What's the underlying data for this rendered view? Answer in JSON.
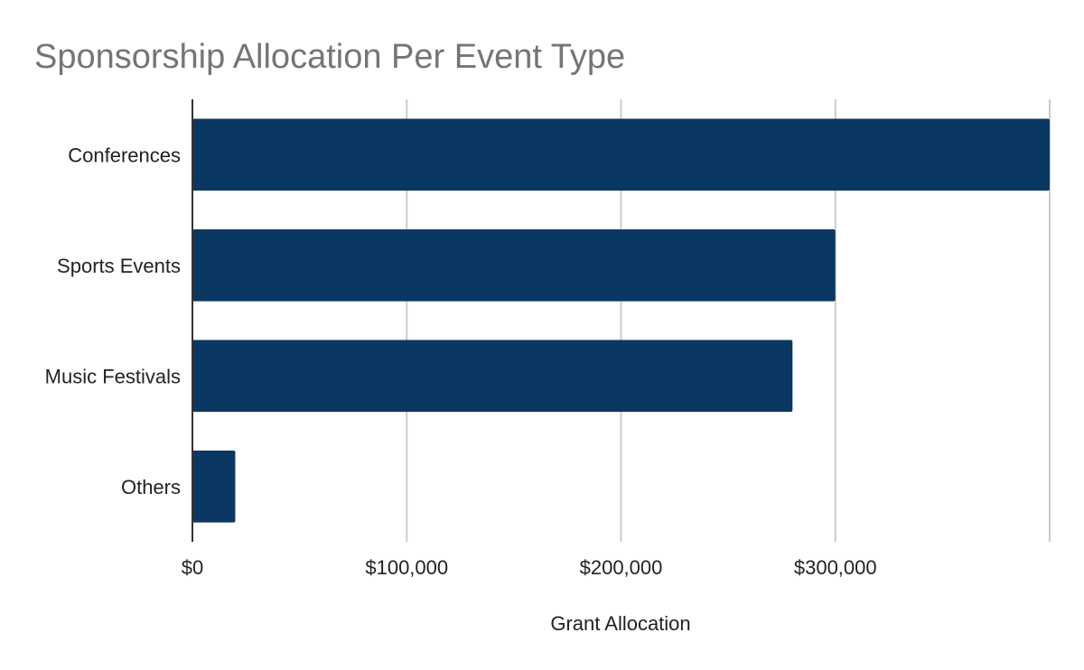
{
  "chart_data": {
    "type": "bar",
    "orientation": "horizontal",
    "title": "Sponsorship Allocation Per Event Type",
    "xlabel": "Grant Allocation",
    "ylabel": "",
    "categories": [
      "Conferences",
      "Sports Events",
      "Music Festivals",
      "Others"
    ],
    "series": [
      {
        "values": [
          400000,
          300000,
          280000,
          20000
        ],
        "color": "#0b3862"
      }
    ],
    "xlim": [
      0,
      400000
    ],
    "x_ticks": [
      0,
      100000,
      200000,
      300000
    ],
    "x_tick_labels": [
      "$0",
      "$100,000",
      "$200,000",
      "$300,000"
    ],
    "grid": true,
    "gridline_color": "#cccccc",
    "axis_color": "#333333",
    "title_color": "#757575",
    "legend": "none"
  }
}
